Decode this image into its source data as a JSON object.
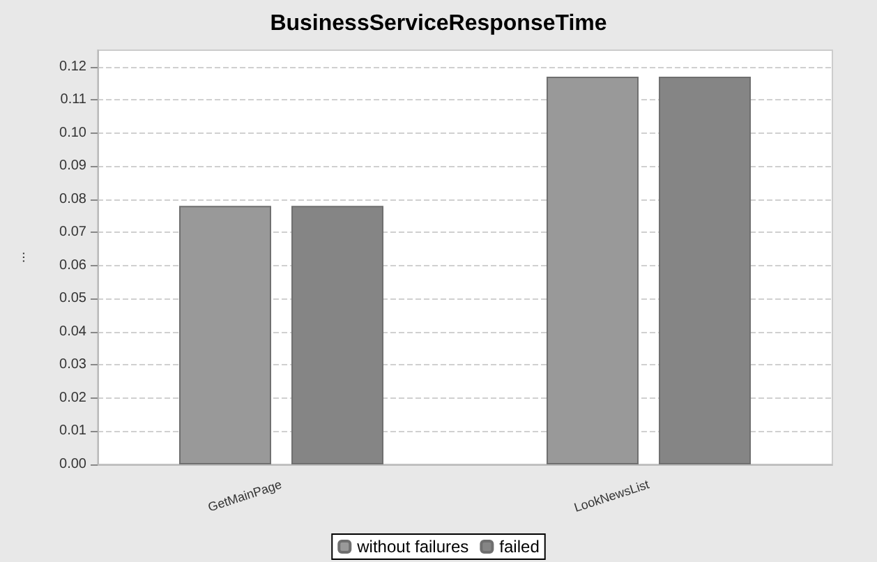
{
  "chart_data": {
    "type": "bar",
    "title": "BusinessServiceResponseTime",
    "ylabel": "...",
    "categories": [
      "GetMainPage",
      "LookNewsList"
    ],
    "series": [
      {
        "name": "without failures",
        "color": "#999999",
        "values": [
          0.078,
          0.117
        ]
      },
      {
        "name": "failed",
        "color": "#858585",
        "values": [
          0.078,
          0.117
        ]
      }
    ],
    "ylim": [
      0,
      0.125
    ],
    "yticks": [
      {
        "value": 0,
        "label": "0.00"
      },
      0.01,
      0.02,
      0.03,
      0.04,
      0.05,
      0.06,
      0.07,
      0.08,
      0.09,
      {
        "value": 0.1,
        "label": "0.10"
      },
      0.11,
      0.12
    ],
    "grid": "y",
    "legend": "bottom"
  }
}
